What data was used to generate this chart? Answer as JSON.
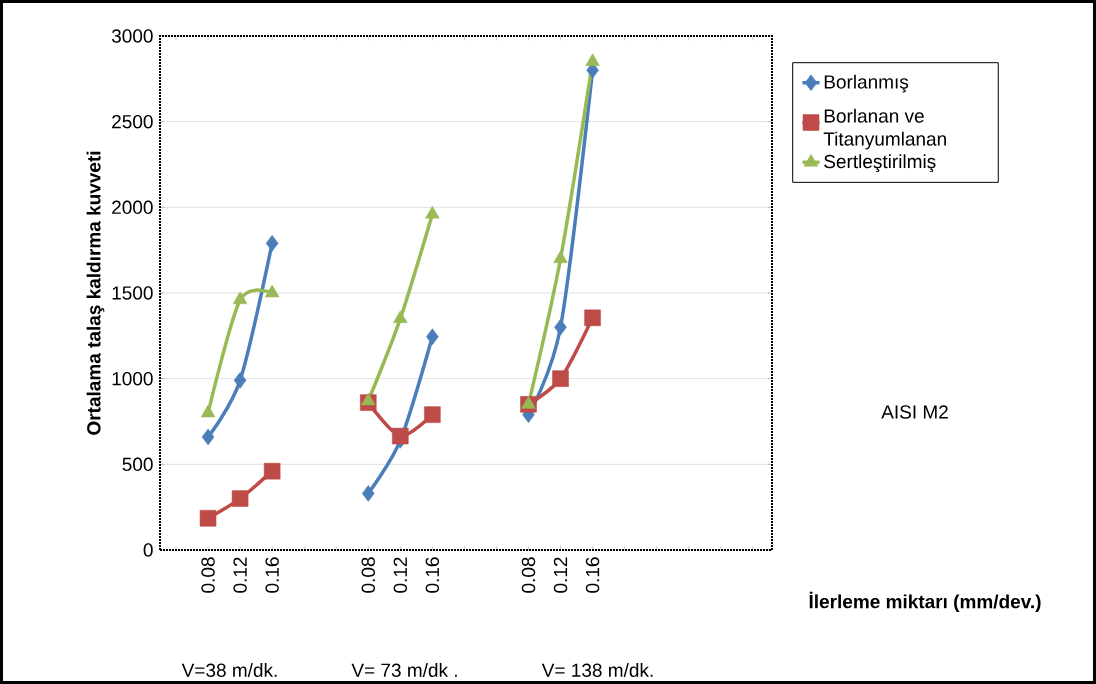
{
  "chart_data": {
    "type": "line",
    "ylabel": "Ortalama talaş kaldırma kuvveti",
    "xlabel": "İlerleme miktarı (mm/dev.)",
    "categories": [
      null,
      "0.08",
      "0.12",
      "0.16",
      null,
      null,
      "0.08",
      "0.12",
      "0.16",
      null,
      null,
      "0.08",
      "0.12",
      "0.16",
      null,
      null,
      null,
      null,
      null
    ],
    "series": [
      {
        "name": "Borlanmış",
        "color": "#4a7ebb",
        "marker": "diamond",
        "values": [
          null,
          660,
          990,
          1790,
          null,
          null,
          330,
          640,
          1245,
          null,
          null,
          790,
          1300,
          2800,
          null,
          null,
          null,
          null,
          null
        ]
      },
      {
        "name": "Borlanan ve Titanyumlanan",
        "color": "#be4b48",
        "marker": "square",
        "values": [
          null,
          185,
          300,
          460,
          null,
          null,
          860,
          665,
          790,
          null,
          null,
          850,
          1000,
          1355,
          null,
          null,
          null,
          null,
          null
        ]
      },
      {
        "name": "Sertleştirilmiş",
        "color": "#98b954",
        "marker": "triangle",
        "values": [
          null,
          800,
          1460,
          1500,
          null,
          null,
          870,
          1350,
          1960,
          null,
          null,
          850,
          1700,
          2850,
          null,
          null,
          null,
          null,
          null
        ]
      }
    ],
    "ylim": [
      0,
      3000
    ],
    "yticks": [
      0,
      500,
      1000,
      1500,
      2000,
      2500,
      3000
    ],
    "grid": "y",
    "legend": "right",
    "line_style": "solid",
    "annotations": [
      "V=38 m/dk.",
      "V= 73 m/dk .",
      "V= 138 m/dk.",
      "AISI M2"
    ]
  }
}
